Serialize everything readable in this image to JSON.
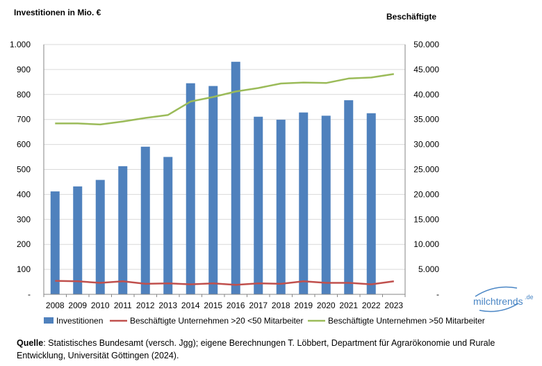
{
  "chart_data": {
    "type": "bar",
    "left_axis_title": "Investitionen in Mio. €",
    "right_axis_title": "Beschäftigte",
    "categories": [
      "2008",
      "2009",
      "2010",
      "2011",
      "2012",
      "2013",
      "2014",
      "2015",
      "2016",
      "2017",
      "2018",
      "2019",
      "2020",
      "2021",
      "2022",
      "2023"
    ],
    "y_left": {
      "ylim": [
        0,
        1000
      ],
      "ticks": [
        0,
        100,
        200,
        300,
        400,
        500,
        600,
        700,
        800,
        900,
        1000
      ],
      "tick_labels": [
        "-",
        "100",
        "200",
        "300",
        "400",
        "500",
        "600",
        "700",
        "800",
        "900",
        "1.000"
      ]
    },
    "y_right": {
      "ylim": [
        0,
        50000
      ],
      "ticks": [
        0,
        5000,
        10000,
        15000,
        20000,
        25000,
        30000,
        35000,
        40000,
        45000,
        50000
      ],
      "tick_labels": [
        "-",
        "5.000",
        "10.000",
        "15.000",
        "20.000",
        "25.000",
        "30.000",
        "35.000",
        "40.000",
        "45.000",
        "50.000"
      ]
    },
    "series": [
      {
        "name": "Investitionen",
        "kind": "bar",
        "axis": "left",
        "color": "#4f81bd",
        "values": [
          412,
          432,
          458,
          513,
          591,
          550,
          845,
          834,
          931,
          711,
          699,
          728,
          715,
          777,
          725,
          null
        ]
      },
      {
        "name": "Beschäftigte Unternehmen >20 <50 Mitarbeiter",
        "kind": "line",
        "axis": "right",
        "color": "#c0504d",
        "values": [
          2700,
          2600,
          2300,
          2600,
          2100,
          2200,
          2000,
          2200,
          1900,
          2200,
          2100,
          2600,
          2300,
          2300,
          2000,
          2600
        ]
      },
      {
        "name": "Beschäftigte Unternehmen >50 Mitarbeiter",
        "kind": "line",
        "axis": "right",
        "color": "#9bbb59",
        "values": [
          34200,
          34200,
          34000,
          34600,
          35300,
          35900,
          38600,
          39500,
          40600,
          41300,
          42200,
          42400,
          42300,
          43200,
          43400,
          44100
        ]
      }
    ],
    "grid": true,
    "legend_position": "bottom"
  },
  "source": {
    "label": "Quelle",
    "text": ": Statistisches Bundesamt (versch. Jgg); eigene Berechnungen T. Löbbert, Department für Agrarökonomie und Rurale Entwicklung, Universität Göttingen (2024)."
  },
  "logo": {
    "text": "milchtrends",
    "suffix": ".de"
  }
}
